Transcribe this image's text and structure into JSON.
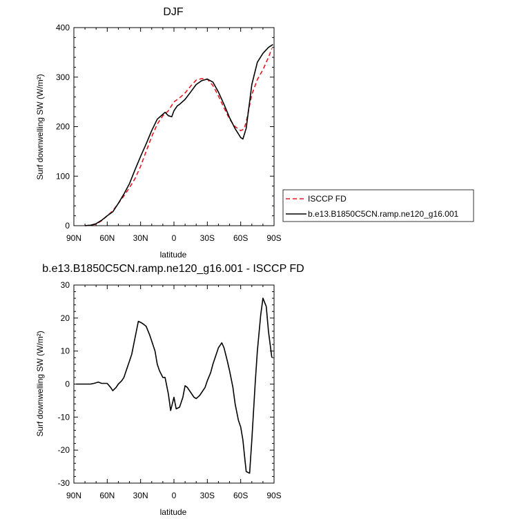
{
  "chart_data": [
    {
      "type": "line",
      "title": "DJF",
      "xlabel": "latitude",
      "ylabel": "Surf downwelling SW (W/m²)",
      "xlim": [
        90,
        -90
      ],
      "ylim": [
        0,
        400
      ],
      "x_ticks": [
        {
          "value": 90,
          "label": "90N"
        },
        {
          "value": 60,
          "label": "60N"
        },
        {
          "value": 30,
          "label": "30N"
        },
        {
          "value": 0,
          "label": "0"
        },
        {
          "value": -30,
          "label": "30S"
        },
        {
          "value": -60,
          "label": "60S"
        },
        {
          "value": -90,
          "label": "90S"
        }
      ],
      "y_ticks": [
        0,
        100,
        200,
        300,
        400
      ],
      "legend": "outside-right",
      "series": [
        {
          "name": "ISCCP FD",
          "color": "#e8141c",
          "dash": "dashed",
          "x": [
            80,
            75,
            70,
            65,
            60,
            55,
            50,
            45,
            40,
            35,
            30,
            25,
            20,
            15,
            10,
            5,
            0,
            -5,
            -10,
            -15,
            -20,
            -25,
            -30,
            -35,
            -40,
            -45,
            -50,
            -55,
            -60,
            -63,
            -65,
            -70,
            -75,
            -80,
            -85,
            -88
          ],
          "y": [
            0,
            1,
            3,
            10,
            20,
            30,
            45,
            60,
            77,
            95,
            120,
            150,
            180,
            205,
            222,
            232,
            250,
            258,
            268,
            282,
            294,
            297,
            296,
            283,
            262,
            238,
            215,
            200,
            192,
            195,
            210,
            265,
            295,
            315,
            340,
            358
          ]
        },
        {
          "name": "b.e13.B1850C5CN.ramp.ne120_g16.001",
          "color": "#000000",
          "dash": "solid",
          "x": [
            80,
            75,
            70,
            65,
            60,
            55,
            50,
            45,
            40,
            35,
            30,
            25,
            20,
            15,
            10,
            8,
            5,
            2,
            0,
            -3,
            -5,
            -10,
            -15,
            -20,
            -25,
            -30,
            -35,
            -40,
            -45,
            -50,
            -55,
            -60,
            -62,
            -65,
            -70,
            -75,
            -80,
            -85,
            -89
          ],
          "y": [
            0,
            1,
            4,
            11,
            20,
            28,
            45,
            64,
            85,
            113,
            140,
            165,
            192,
            215,
            225,
            229,
            222,
            220,
            232,
            242,
            245,
            255,
            270,
            285,
            293,
            296,
            290,
            270,
            245,
            218,
            196,
            178,
            175,
            197,
            285,
            330,
            348,
            360,
            366
          ]
        }
      ]
    },
    {
      "type": "line",
      "title": "b.e13.B1850C5CN.ramp.ne120_g16.001 - ISCCP FD",
      "xlabel": "latitude",
      "ylabel": "Surf downwelling SW (W/m²)",
      "xlim": [
        90,
        -90
      ],
      "ylim": [
        -30,
        30
      ],
      "x_ticks": [
        {
          "value": 90,
          "label": "90N"
        },
        {
          "value": 60,
          "label": "60N"
        },
        {
          "value": 30,
          "label": "30N"
        },
        {
          "value": 0,
          "label": "0"
        },
        {
          "value": -30,
          "label": "30S"
        },
        {
          "value": -60,
          "label": "60S"
        },
        {
          "value": -90,
          "label": "90S"
        }
      ],
      "y_ticks": [
        -30,
        -20,
        -10,
        0,
        10,
        20,
        30
      ],
      "series": [
        {
          "color": "#000000",
          "dash": "solid",
          "x": [
            88,
            80,
            75,
            72,
            70,
            68,
            65,
            62,
            60,
            57,
            55,
            52,
            50,
            47,
            45,
            43,
            40,
            38,
            35,
            32,
            30,
            28,
            25,
            22,
            20,
            17,
            15,
            13,
            10,
            8,
            5,
            3,
            0,
            -2,
            -5,
            -8,
            -10,
            -12,
            -15,
            -18,
            -20,
            -23,
            -25,
            -28,
            -30,
            -33,
            -35,
            -38,
            -40,
            -43,
            -45,
            -48,
            -50,
            -53,
            -55,
            -58,
            -60,
            -62,
            -64,
            -65,
            -68,
            -70,
            -73,
            -75,
            -78,
            -80,
            -83,
            -85,
            -88
          ],
          "y": [
            0,
            0,
            0,
            0.2,
            0.4,
            0.6,
            0.2,
            0.2,
            0.2,
            -1,
            -2,
            -1,
            0,
            1,
            2,
            4,
            7,
            9,
            14,
            19,
            18.7,
            18.3,
            17.5,
            15,
            13,
            10,
            6,
            4,
            2,
            2,
            -3,
            -8,
            -4,
            -7.5,
            -7,
            -4,
            -0.5,
            -1,
            -2.5,
            -4,
            -4.4,
            -3.5,
            -2.5,
            -1,
            1,
            3.5,
            6,
            9,
            11,
            12.5,
            11,
            7,
            4,
            -1,
            -6,
            -11,
            -13,
            -17,
            -23.5,
            -26.5,
            -27,
            -17,
            0,
            10,
            21,
            26,
            23.5,
            16,
            8
          ]
        }
      ]
    }
  ]
}
